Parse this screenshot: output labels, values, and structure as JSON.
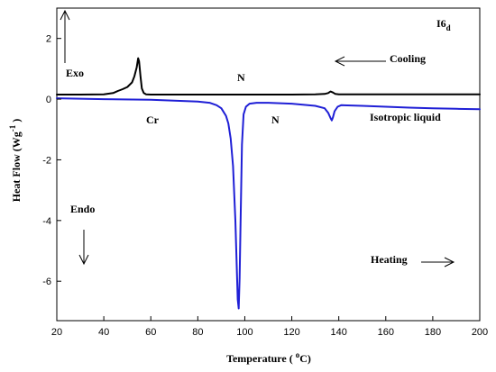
{
  "chart_data": {
    "type": "line",
    "xlabel_main": "Temperature ( ",
    "xlabel_sup": "o",
    "xlabel_end": "C)",
    "ylabel_main": "Heat Flow (Wg",
    "ylabel_sup": "-1",
    "ylabel_end": " )",
    "xlim": [
      20,
      200
    ],
    "ylim": [
      -7.3,
      3.0
    ],
    "xticks": [
      20,
      40,
      60,
      80,
      100,
      120,
      140,
      160,
      180,
      200
    ],
    "yticks": [
      2,
      0,
      -2,
      -4,
      -6
    ],
    "grid": false,
    "series": [
      {
        "color": "#000000",
        "x": [
          20,
          30,
          40,
          44,
          46,
          48,
          50,
          52,
          53,
          54,
          54.6,
          55,
          55.6,
          56.2,
          57,
          58,
          60,
          70,
          80,
          90,
          100,
          110,
          120,
          130,
          134,
          135.5,
          136.5,
          137.5,
          138.5,
          140,
          150,
          160,
          170,
          180,
          190,
          200
        ],
        "y": [
          0.15,
          0.15,
          0.16,
          0.2,
          0.27,
          0.33,
          0.4,
          0.55,
          0.75,
          1.05,
          1.35,
          1.25,
          0.75,
          0.35,
          0.2,
          0.16,
          0.15,
          0.15,
          0.15,
          0.15,
          0.15,
          0.15,
          0.15,
          0.16,
          0.17,
          0.2,
          0.25,
          0.22,
          0.17,
          0.16,
          0.16,
          0.16,
          0.16,
          0.16,
          0.16,
          0.16
        ]
      },
      {
        "color": "#1f1fd6",
        "x": [
          20,
          40,
          60,
          70,
          80,
          85,
          88,
          90,
          92,
          93,
          94,
          95,
          96,
          96.6,
          97,
          97.4,
          97.8,
          98.2,
          98.8,
          99.5,
          100.5,
          102,
          105,
          110,
          120,
          130,
          134,
          135.5,
          136.5,
          137,
          137.5,
          138.2,
          139.5,
          141,
          150,
          160,
          170,
          180,
          190,
          200
        ],
        "y": [
          0.03,
          0.0,
          -0.02,
          -0.05,
          -0.08,
          -0.12,
          -0.2,
          -0.3,
          -0.55,
          -0.8,
          -1.3,
          -2.2,
          -4.0,
          -5.6,
          -6.6,
          -6.9,
          -5.9,
          -4.0,
          -1.5,
          -0.5,
          -0.25,
          -0.15,
          -0.12,
          -0.12,
          -0.15,
          -0.22,
          -0.3,
          -0.45,
          -0.62,
          -0.7,
          -0.6,
          -0.4,
          -0.25,
          -0.2,
          -0.22,
          -0.25,
          -0.28,
          -0.3,
          -0.32,
          -0.33
        ]
      }
    ],
    "annotations": {
      "label_I6": "I6",
      "label_I6_sub": "d",
      "exo": "Exo",
      "endo": "Endo",
      "cooling": "Cooling",
      "heating": "Heating",
      "n_upper": "N",
      "n_lower": "N",
      "cr": "Cr",
      "iso": "Isotropic liquid"
    }
  }
}
